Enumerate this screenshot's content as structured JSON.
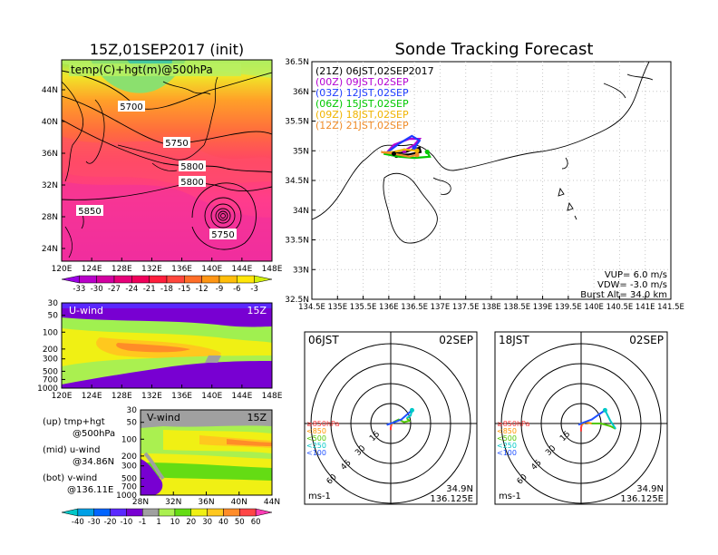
{
  "left_title": "15Z,01SEP2017 (init)",
  "right_title": "Sonde Tracking Forecast",
  "top_map": {
    "label": "temp(C)+hgt(m)@500hPa",
    "lat_ticks": [
      "44N",
      "40N",
      "36N",
      "32N",
      "28N",
      "24N"
    ],
    "lon_ticks": [
      "120E",
      "124E",
      "128E",
      "132E",
      "136E",
      "140E",
      "144E",
      "148E"
    ],
    "contour_labels": [
      "5700",
      "5750",
      "5800",
      "5800",
      "5850",
      "5750"
    ],
    "colorbar_ticks": [
      "-33",
      "-30",
      "-27",
      "-24",
      "-21",
      "-18",
      "-15",
      "-12",
      "-9",
      "-6",
      "-3"
    ],
    "colorbar_colors": [
      "#9b00e6",
      "#b800c8",
      "#d200a0",
      "#e60078",
      "#f0005a",
      "#ff1e3c",
      "#ff463c",
      "#ff6e28",
      "#ff9614",
      "#ffbe0a",
      "#ffe60a",
      "#d2f00a"
    ]
  },
  "uwind": {
    "label": "U-wind",
    "time": "15Z",
    "p_ticks": [
      "30",
      "50",
      "100",
      "200",
      "300",
      "500",
      "700",
      "1000"
    ],
    "lon_ticks": [
      "120E",
      "124E",
      "128E",
      "132E",
      "136E",
      "140E",
      "144E",
      "148E"
    ]
  },
  "vwind": {
    "label": "V-wind",
    "time": "15Z",
    "p_ticks": [
      "30",
      "50",
      "100",
      "200",
      "300",
      "500",
      "700",
      "1000"
    ],
    "lat_ticks": [
      "28N",
      "32N",
      "36N",
      "40N",
      "44N"
    ]
  },
  "wind_colorbar": {
    "ticks": [
      "-40",
      "-30",
      "-20",
      "-10",
      "-1",
      "1",
      "10",
      "20",
      "30",
      "40",
      "50",
      "60"
    ],
    "colors": [
      "#00c8c8",
      "#00a0e6",
      "#0064ff",
      "#5a28ff",
      "#7800d2",
      "#a0a0a0",
      "#aaf050",
      "#64dc14",
      "#f0f014",
      "#ffc81e",
      "#ff8c28",
      "#ff4646",
      "#ff3cb4"
    ]
  },
  "notes": [
    {
      "label": "(up) tmp+hgt",
      "sub": "@500hPa"
    },
    {
      "label": "(mid) u-wind",
      "sub": "@34.86N"
    },
    {
      "label": "(bot) v-wind",
      "sub": "@136.11E"
    }
  ],
  "track_map": {
    "lat_ticks": [
      "36.5N",
      "36N",
      "35.5N",
      "35N",
      "34.5N",
      "34N",
      "33.5N",
      "33N",
      "32.5N"
    ],
    "lon_ticks": [
      "134.5E",
      "135E",
      "135.5E",
      "136E",
      "136.5E",
      "137E",
      "137.5E",
      "138E",
      "138.5E",
      "139E",
      "139.5E",
      "140E",
      "140.5E",
      "141E",
      "141.5E"
    ],
    "legend": [
      {
        "label": "(21Z) 06JST,02SEP2017",
        "color": "#000000"
      },
      {
        "label": "(00Z)  09JST,02SEP",
        "color": "#b400d2"
      },
      {
        "label": "(03Z)  12JST,02SEP",
        "color": "#1e3cff"
      },
      {
        "label": "(06Z)  15JST,02SEP",
        "color": "#00c800"
      },
      {
        "label": "(09Z)  18JST,02SEP",
        "color": "#f0b400"
      },
      {
        "label": "(12Z)  21JST,02SEP",
        "color": "#f08c28"
      }
    ],
    "params": [
      "VUP= 6.0 m/s",
      "VDW= -3.0 m/s",
      "Burst Alt= 34.0 km"
    ]
  },
  "hodographs": [
    {
      "time": "06JST",
      "date": "02SEP",
      "lat": "34.9N",
      "lon": "136.125E",
      "unit": "ms-1"
    },
    {
      "time": "18JST",
      "date": "02SEP",
      "lat": "34.9N",
      "lon": "136.125E",
      "unit": "ms-1"
    }
  ],
  "hodo_ring_labels": [
    "15",
    "30",
    "45",
    "60"
  ],
  "hodo_legend": [
    {
      "label": "≥850hPa",
      "color": "#ff3c3c"
    },
    {
      "label": "<850",
      "color": "#ff9600"
    },
    {
      "label": "<500",
      "color": "#50c800"
    },
    {
      "label": "<250",
      "color": "#00c8c8"
    },
    {
      "label": "<100",
      "color": "#1e50ff"
    }
  ],
  "chart_data": [
    {
      "type": "heatmap",
      "title": "15Z,01SEP2017 (init)",
      "subtitle": "temp(C)+hgt(m)@500hPa",
      "xlim": [
        "120E",
        "148E"
      ],
      "ylim": [
        "24N",
        "44N"
      ],
      "contour_levels_m": [
        5700,
        5750,
        5800,
        5850
      ],
      "color_levels_C": [
        -33,
        -30,
        -27,
        -24,
        -21,
        -18,
        -15,
        -12,
        -9,
        -6,
        -3
      ]
    },
    {
      "type": "heatmap",
      "title": "U-wind",
      "xlim": [
        "120E",
        "148E"
      ],
      "ylim_hPa": [
        1000,
        30
      ],
      "color_levels_ms": [
        -40,
        -30,
        -20,
        -10,
        -1,
        1,
        10,
        20,
        30,
        40,
        50,
        60
      ]
    },
    {
      "type": "heatmap",
      "title": "V-wind",
      "xlim": [
        "28N",
        "44N"
      ],
      "ylim_hPa": [
        1000,
        30
      ],
      "color_levels_ms": [
        -40,
        -30,
        -20,
        -10,
        -1,
        1,
        10,
        20,
        30,
        40,
        50,
        60
      ]
    },
    {
      "type": "line",
      "title": "Sonde Tracking Forecast",
      "xlim": [
        134.5,
        141.5
      ],
      "ylim": [
        32.5,
        36.5
      ],
      "series": [
        {
          "name": "(21Z) 06JST,02SEP2017",
          "color": "#000000",
          "points": [
            [
              136.1,
              34.95
            ],
            [
              136.3,
              34.97
            ],
            [
              136.5,
              35.03
            ],
            [
              136.6,
              35.05
            ],
            [
              136.62,
              34.98
            ],
            [
              136.4,
              34.94
            ],
            [
              136.15,
              34.92
            ]
          ]
        },
        {
          "name": "(00Z)  09JST,02SEP",
          "color": "#b400d2",
          "points": [
            [
              135.95,
              34.96
            ],
            [
              136.1,
              35.1
            ],
            [
              136.4,
              35.2
            ],
            [
              136.6,
              35.2
            ],
            [
              136.5,
              35.1
            ],
            [
              136.3,
              35.0
            ]
          ]
        },
        {
          "name": "(03Z)  12JST,02SEP",
          "color": "#1e3cff",
          "points": [
            [
              135.95,
              34.96
            ],
            [
              136.2,
              35.12
            ],
            [
              136.45,
              35.25
            ],
            [
              136.6,
              35.17
            ],
            [
              136.5,
              35.05
            ]
          ]
        },
        {
          "name": "(06Z)  15JST,02SEP",
          "color": "#00c800",
          "points": [
            [
              135.9,
              34.95
            ],
            [
              136.2,
              34.9
            ],
            [
              136.5,
              34.88
            ],
            [
              136.8,
              34.9
            ],
            [
              136.75,
              34.98
            ]
          ]
        },
        {
          "name": "(09Z)  18JST,02SEP",
          "color": "#f0b400",
          "points": [
            [
              135.9,
              34.97
            ],
            [
              136.1,
              34.98
            ],
            [
              136.3,
              35.02
            ],
            [
              136.55,
              35.0
            ]
          ]
        },
        {
          "name": "(12Z)  21JST,02SEP",
          "color": "#f08c28",
          "points": [
            [
              135.85,
              34.98
            ],
            [
              136.1,
              34.95
            ],
            [
              136.4,
              34.9
            ],
            [
              136.55,
              34.93
            ]
          ]
        }
      ]
    },
    {
      "type": "line",
      "title": "06JST 02SEP hodograph",
      "unit": "ms-1",
      "rings": [
        15,
        30,
        45,
        60
      ],
      "series": [
        {
          "name": "≥850hPa",
          "color": "#ff3c3c",
          "uv": [
            [
              0,
              -5
            ],
            [
              0,
              -3
            ],
            [
              0.5,
              -1
            ]
          ]
        },
        {
          "name": "<850",
          "color": "#ff9600",
          "uv": [
            [
              0.5,
              -1
            ],
            [
              1,
              0
            ],
            [
              2,
              1
            ]
          ]
        },
        {
          "name": "<500",
          "color": "#50c800",
          "uv": [
            [
              2,
              1
            ],
            [
              6,
              3
            ],
            [
              10,
              1
            ],
            [
              14,
              2
            ],
            [
              12,
              4
            ]
          ]
        },
        {
          "name": "<250",
          "color": "#00c8c8",
          "uv": [
            [
              12,
              4
            ],
            [
              15,
              6
            ],
            [
              16,
              10
            ]
          ]
        },
        {
          "name": "<100",
          "color": "#1e50ff",
          "uv": [
            [
              16,
              10
            ],
            [
              8,
              3
            ],
            [
              0,
              0
            ],
            [
              -3,
              -1
            ]
          ]
        }
      ]
    },
    {
      "type": "line",
      "title": "18JST 02SEP hodograph",
      "unit": "ms-1",
      "rings": [
        15,
        30,
        45,
        60
      ],
      "series": [
        {
          "name": "≥850hPa",
          "color": "#ff3c3c",
          "uv": [
            [
              0,
              -6
            ],
            [
              0,
              -3
            ],
            [
              0.5,
              -1
            ]
          ]
        },
        {
          "name": "<850",
          "color": "#ff9600",
          "uv": [
            [
              0.5,
              -1
            ],
            [
              3,
              1
            ],
            [
              8,
              0
            ]
          ]
        },
        {
          "name": "<500",
          "color": "#50c800",
          "uv": [
            [
              8,
              0
            ],
            [
              15,
              0
            ],
            [
              22,
              -2
            ],
            [
              26,
              -4
            ]
          ]
        },
        {
          "name": "<250",
          "color": "#00c8c8",
          "uv": [
            [
              26,
              -4
            ],
            [
              22,
              2
            ],
            [
              18,
              10
            ]
          ]
        },
        {
          "name": "<100",
          "color": "#1e50ff",
          "uv": [
            [
              18,
              10
            ],
            [
              8,
              3
            ],
            [
              0,
              0
            ],
            [
              -2,
              -1
            ]
          ]
        }
      ]
    }
  ]
}
